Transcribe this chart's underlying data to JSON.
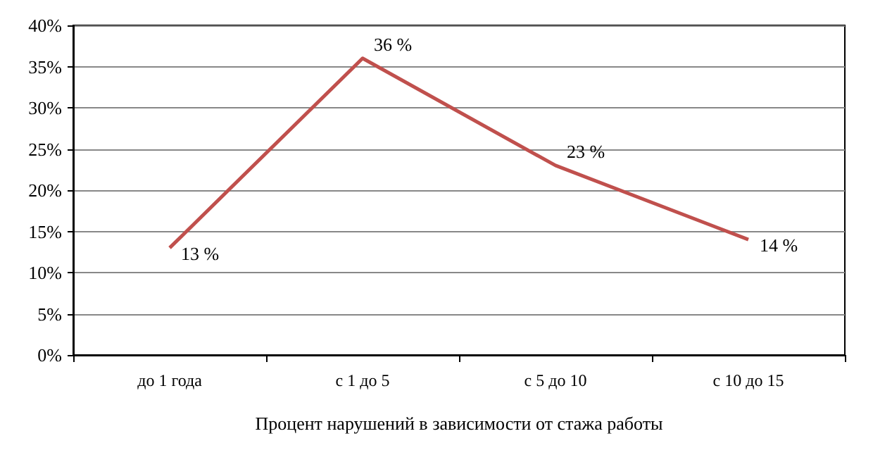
{
  "chart_data": {
    "type": "line",
    "xlabel": "Процент нарушений в зависимости от стажа работы",
    "categories": [
      "до 1 года",
      "с 1 до 5",
      "с 5 до 10",
      "с 10 до 15"
    ],
    "series": [
      {
        "color": "#c0504d",
        "values": [
          13,
          36,
          23,
          14
        ],
        "value_labels": [
          "13 %",
          "36 %",
          "23 %",
          "14 %"
        ]
      }
    ],
    "ylim": [
      0,
      40
    ],
    "yticks": [
      {
        "value": 0,
        "label": "0%"
      },
      {
        "value": 5,
        "label": "5%"
      },
      {
        "value": 10,
        "label": "10%"
      },
      {
        "value": 15,
        "label": "15%"
      },
      {
        "value": 20,
        "label": "20%"
      },
      {
        "value": 25,
        "label": "25%"
      },
      {
        "value": 30,
        "label": "30%"
      },
      {
        "value": 35,
        "label": "35%"
      },
      {
        "value": 40,
        "label": "40%"
      }
    ],
    "grid": "y",
    "marker": "none",
    "line_style": "solid"
  }
}
